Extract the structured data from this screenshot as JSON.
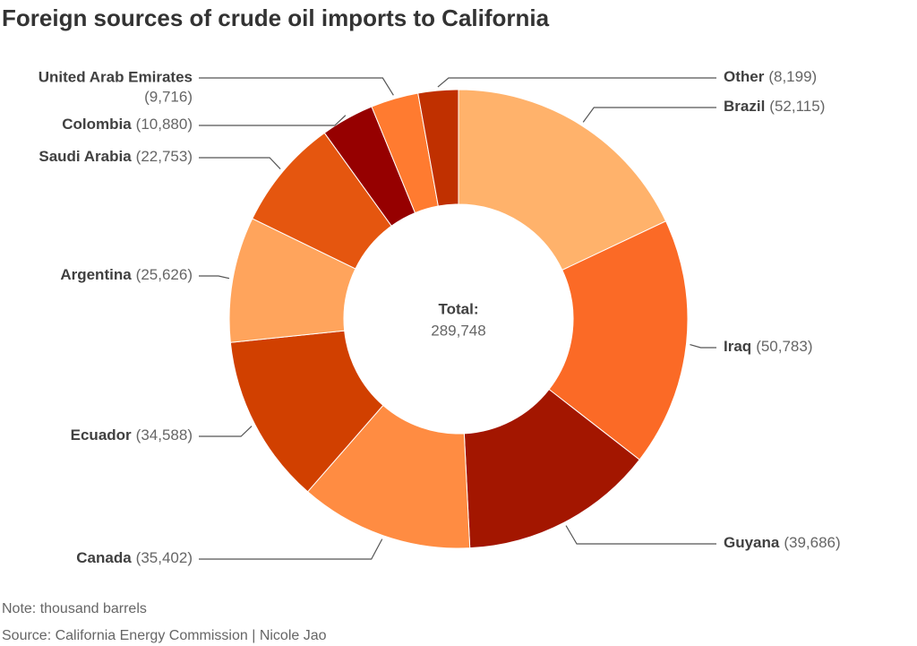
{
  "chart_data": {
    "type": "donut",
    "title": "Foreign sources of crude oil imports to California",
    "categories": [
      "Brazil",
      "Iraq",
      "Guyana",
      "Canada",
      "Ecuador",
      "Argentina",
      "Saudi Arabia",
      "Colombia",
      "United Arab Emirates",
      "Other"
    ],
    "values": [
      52115,
      50783,
      39686,
      35402,
      34588,
      25626,
      22753,
      10880,
      9716,
      8199
    ],
    "value_labels": [
      "(52,115)",
      "(50,783)",
      "(39,686)",
      "(35,402)",
      "(34,588)",
      "(25,626)",
      "(22,753)",
      "(10,880)",
      "(9,716)",
      "(8,199)"
    ],
    "colors": [
      "#ffb26b",
      "#fb6a26",
      "#a31600",
      "#ff8c42",
      "#d14000",
      "#ffa45c",
      "#e5560f",
      "#960000",
      "#ff7b30",
      "#c03000"
    ],
    "total_label": "Total:",
    "total_value": "289,748",
    "note": "Note: thousand barrels",
    "source": "Source: California Energy Commission | Nicole Jao"
  }
}
